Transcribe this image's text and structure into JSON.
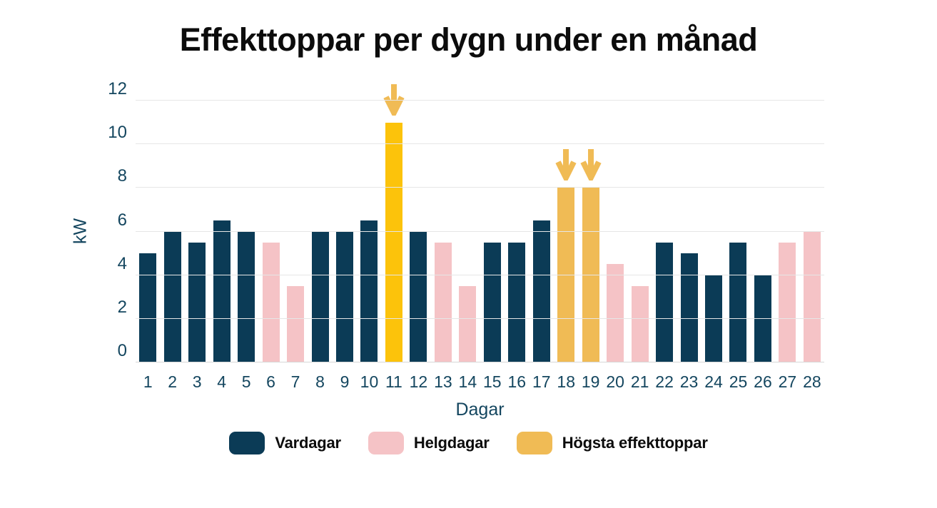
{
  "title": "Effekttoppar per dygn under en månad",
  "chart_data": {
    "type": "bar",
    "title": "Effekttoppar per dygn under en månad",
    "xlabel": "Dagar",
    "ylabel": "kW",
    "ylim": [
      0,
      12
    ],
    "y_ticks": [
      0,
      2,
      4,
      6,
      8,
      10,
      12
    ],
    "grid": "horizontal",
    "palette": {
      "vardagar": "#0B3B56",
      "helgdagar": "#F5C3C6",
      "peak_bright": "#FCC30B",
      "peak_soft": "#F0BB55",
      "arrow": "#F0BB55"
    },
    "bars": [
      {
        "day": "1",
        "value": 5,
        "type": "vardagar",
        "arrow": false
      },
      {
        "day": "2",
        "value": 6,
        "type": "vardagar",
        "arrow": false
      },
      {
        "day": "3",
        "value": 5.5,
        "type": "vardagar",
        "arrow": false
      },
      {
        "day": "4",
        "value": 6.5,
        "type": "vardagar",
        "arrow": false
      },
      {
        "day": "5",
        "value": 6,
        "type": "vardagar",
        "arrow": false
      },
      {
        "day": "6",
        "value": 5.5,
        "type": "helgdagar",
        "arrow": false
      },
      {
        "day": "7",
        "value": 3.5,
        "type": "helgdagar",
        "arrow": false
      },
      {
        "day": "8",
        "value": 6,
        "type": "vardagar",
        "arrow": false
      },
      {
        "day": "9",
        "value": 6,
        "type": "vardagar",
        "arrow": false
      },
      {
        "day": "10",
        "value": 6.5,
        "type": "vardagar",
        "arrow": false
      },
      {
        "day": "11",
        "value": 11,
        "type": "peak_bright",
        "arrow": true
      },
      {
        "day": "12",
        "value": 6,
        "type": "vardagar",
        "arrow": false
      },
      {
        "day": "13",
        "value": 5.5,
        "type": "helgdagar",
        "arrow": false
      },
      {
        "day": "14",
        "value": 3.5,
        "type": "helgdagar",
        "arrow": false
      },
      {
        "day": "15",
        "value": 5.5,
        "type": "vardagar",
        "arrow": false
      },
      {
        "day": "16",
        "value": 5.5,
        "type": "vardagar",
        "arrow": false
      },
      {
        "day": "17",
        "value": 6.5,
        "type": "vardagar",
        "arrow": false
      },
      {
        "day": "18",
        "value": 8,
        "type": "peak_soft",
        "arrow": true
      },
      {
        "day": "19",
        "value": 8,
        "type": "peak_soft",
        "arrow": true
      },
      {
        "day": "20",
        "value": 4.5,
        "type": "helgdagar",
        "arrow": false
      },
      {
        "day": "21",
        "value": 3.5,
        "type": "helgdagar",
        "arrow": false
      },
      {
        "day": "22",
        "value": 5.5,
        "type": "vardagar",
        "arrow": false
      },
      {
        "day": "23",
        "value": 5,
        "type": "vardagar",
        "arrow": false
      },
      {
        "day": "24",
        "value": 4,
        "type": "vardagar",
        "arrow": false
      },
      {
        "day": "25",
        "value": 5.5,
        "type": "vardagar",
        "arrow": false
      },
      {
        "day": "26",
        "value": 4,
        "type": "vardagar",
        "arrow": false
      },
      {
        "day": "27",
        "value": 5.5,
        "type": "helgdagar",
        "arrow": false
      },
      {
        "day": "28",
        "value": 6,
        "type": "helgdagar",
        "arrow": false
      }
    ],
    "legend": {
      "position": "bottom",
      "entries": [
        {
          "label": "Vardagar",
          "color_key": "vardagar"
        },
        {
          "label": "Helgdagar",
          "color_key": "helgdagar"
        },
        {
          "label": "Högsta effekttoppar",
          "color_key": "peak_soft"
        }
      ]
    }
  }
}
